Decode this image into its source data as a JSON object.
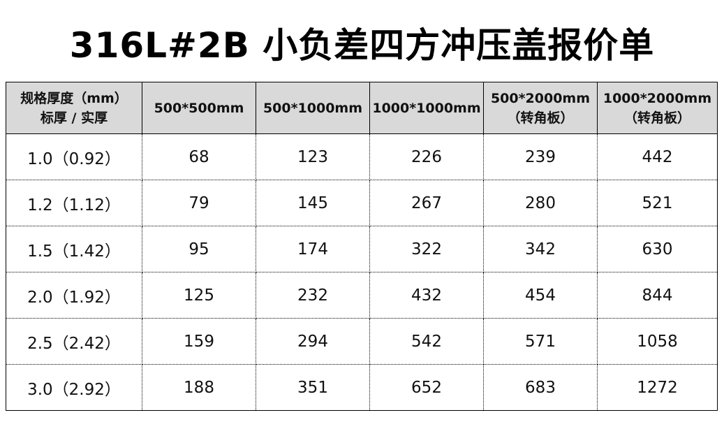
{
  "title": "316L#2B 小负差四方冲压盖报价单",
  "headers": [
    [
      "规格厚度（mm）",
      "标厚 / 实厚"
    ],
    [
      "500*500mm",
      ""
    ],
    [
      "500*1000mm",
      ""
    ],
    [
      "1000*1000mm",
      ""
    ],
    [
      "500*2000mm",
      "（转角板）"
    ],
    [
      "1000*2000mm",
      "（转角板）"
    ]
  ],
  "rows": [
    [
      "1.0（0.92）",
      "68",
      "123",
      "226",
      "239",
      "442"
    ],
    [
      "1.2（1.12）",
      "79",
      "145",
      "267",
      "280",
      "521"
    ],
    [
      "1.5（1.42）",
      "95",
      "174",
      "322",
      "342",
      "630"
    ],
    [
      "2.0（1.92）",
      "125",
      "232",
      "432",
      "454",
      "844"
    ],
    [
      "2.5（2.42）",
      "159",
      "294",
      "542",
      "571",
      "1058"
    ],
    [
      "3.0（2.92）",
      "188",
      "351",
      "652",
      "683",
      "1272"
    ]
  ]
}
